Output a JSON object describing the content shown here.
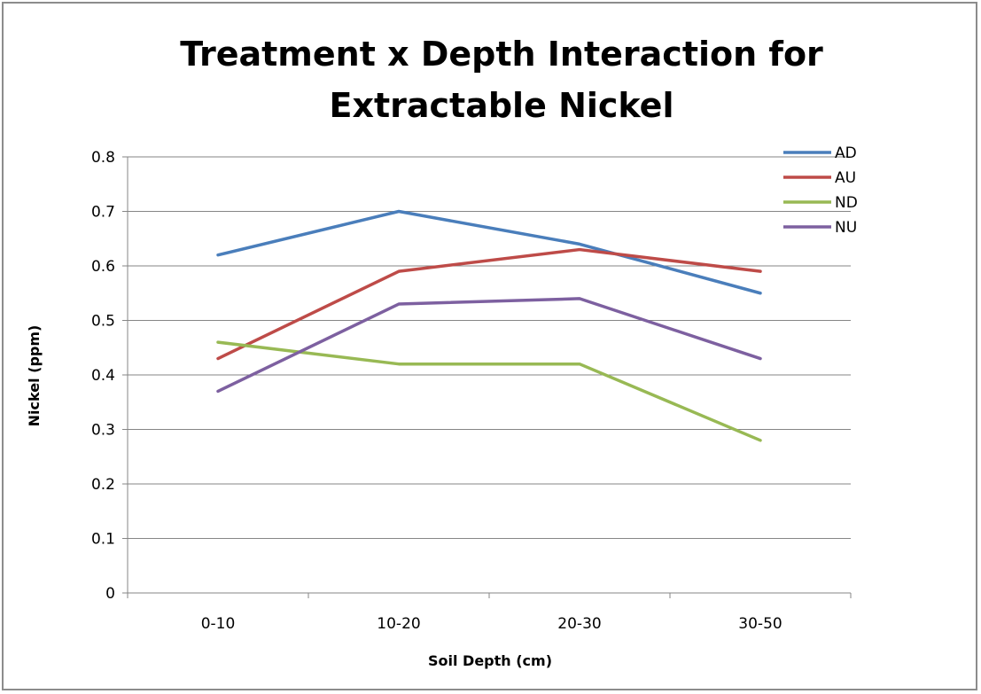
{
  "chart_data": {
    "type": "line",
    "title_lines": [
      "Treatment  x  Depth Interaction for",
      "Extractable Nickel"
    ],
    "xlabel": "Soil Depth (cm)",
    "ylabel": "Nickel (ppm)",
    "categories": [
      "0-10",
      "10-20",
      "20-30",
      "30-50"
    ],
    "ylim": [
      0,
      0.8
    ],
    "yticks": [
      "0",
      "0.1",
      "0.2",
      "0.3",
      "0.4",
      "0.5",
      "0.6",
      "0.7",
      "0.8"
    ],
    "grid": true,
    "legend_position": "top-right",
    "series": [
      {
        "name": "AD",
        "color": "#4a7ebb",
        "values": [
          0.62,
          0.7,
          0.64,
          0.55
        ]
      },
      {
        "name": "AU",
        "color": "#be4b48",
        "values": [
          0.43,
          0.59,
          0.63,
          0.59
        ]
      },
      {
        "name": "ND",
        "color": "#98b954",
        "values": [
          0.46,
          0.42,
          0.42,
          0.28
        ]
      },
      {
        "name": "NU",
        "color": "#7d60a0",
        "values": [
          0.37,
          0.53,
          0.54,
          0.43
        ]
      }
    ]
  }
}
